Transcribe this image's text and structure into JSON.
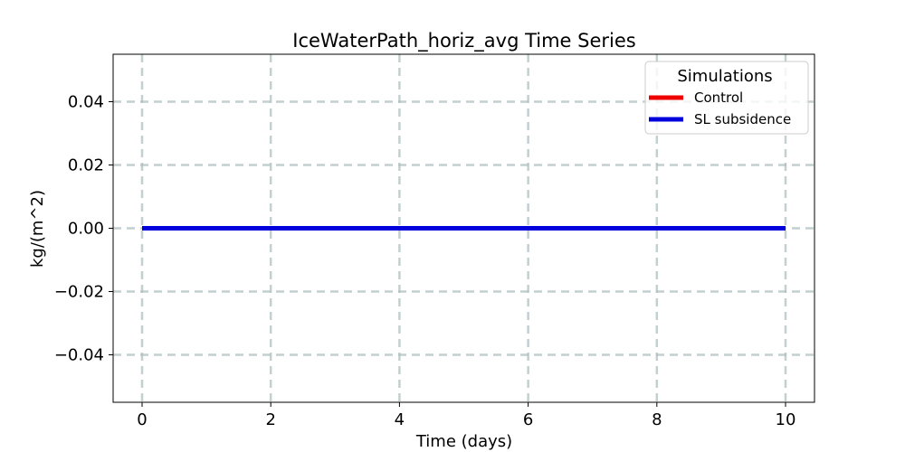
{
  "chart_data": {
    "type": "line",
    "title": "IceWaterPath_horiz_avg Time Series",
    "xlabel": "Time (days)",
    "ylabel": "kg/(m^2)",
    "xlim": [
      -0.45,
      10.45
    ],
    "ylim": [
      -0.055,
      0.055
    ],
    "xticks": [
      0,
      2,
      4,
      6,
      8,
      10
    ],
    "xtick_labels": [
      "0",
      "2",
      "4",
      "6",
      "8",
      "10"
    ],
    "yticks": [
      -0.04,
      -0.02,
      0.0,
      0.02,
      0.04
    ],
    "ytick_labels": [
      "−0.04",
      "−0.02",
      "0.00",
      "0.02",
      "0.04"
    ],
    "grid": true,
    "legend": {
      "title": "Simulations",
      "placement": "top-right"
    },
    "series": [
      {
        "name": "Control",
        "color": "#ee0000",
        "x": [
          0,
          10
        ],
        "y": [
          0.0,
          0.0
        ]
      },
      {
        "name": "SL subsidence",
        "color": "#0000dd",
        "x": [
          0,
          10
        ],
        "y": [
          0.0,
          0.0
        ]
      }
    ]
  }
}
